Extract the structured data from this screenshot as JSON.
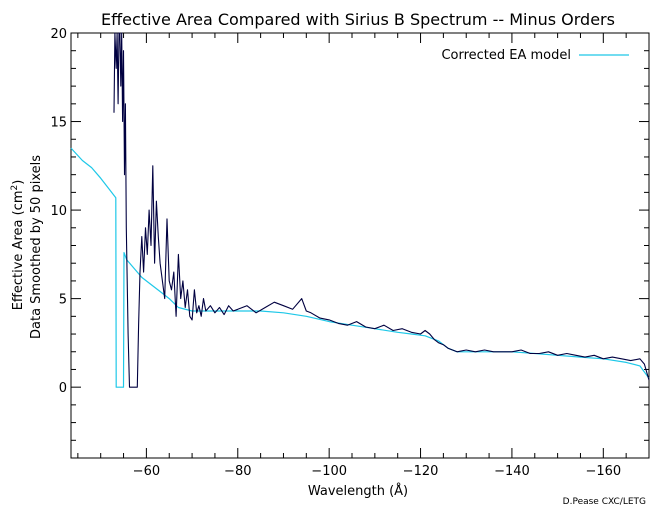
{
  "chart_data": {
    "type": "line",
    "title": "Effective Area Compared with Sirius B Spectrum -- Minus Orders",
    "xlabel": "Wavelength (Å)",
    "ylabel_line1": "Effective Area (cm",
    "ylabel_sup": "2",
    "ylabel_line1_end": ")",
    "ylabel_line2": "Data Smoothed by 50 pixels",
    "credit": "D.Pease CXC/LETG",
    "xlim": [
      -43.5,
      -170
    ],
    "ylim": [
      -4,
      20
    ],
    "x_ticks": [
      -60,
      -80,
      -100,
      -120,
      -140,
      -160
    ],
    "x_tick_labels": [
      "−60",
      "−80",
      "−100",
      "−120",
      "−140",
      "−160"
    ],
    "y_ticks": [
      0,
      5,
      10,
      15,
      20
    ],
    "y_tick_labels": [
      "0",
      "5",
      "10",
      "15",
      "20"
    ],
    "legend": {
      "position": "top-right",
      "label": "Corrected EA model"
    },
    "series": [
      {
        "name": "Corrected EA model",
        "color": "#1ec8e8",
        "x": [
          -43.5,
          -46,
          -48,
          -50,
          -51.5,
          -53.3,
          -53.4,
          -55,
          -55.1,
          -55.7,
          -57,
          -59,
          -61,
          -63,
          -65,
          -67,
          -70,
          -75,
          -80,
          -85,
          -90,
          -95,
          -100,
          -105,
          -110,
          -115,
          -118,
          -121,
          -124,
          -126,
          -128,
          -130,
          -135,
          -140,
          -145,
          -150,
          -155,
          -160,
          -165,
          -168,
          -170
        ],
        "values": [
          13.5,
          12.8,
          12.4,
          11.8,
          11.3,
          10.7,
          0,
          0,
          7.6,
          7.2,
          6.8,
          6.2,
          5.8,
          5.4,
          5.0,
          4.5,
          4.3,
          4.3,
          4.3,
          4.3,
          4.2,
          4.0,
          3.7,
          3.5,
          3.3,
          3.1,
          3.0,
          2.9,
          2.6,
          2.2,
          2.0,
          2.0,
          2.0,
          2.0,
          1.9,
          1.8,
          1.7,
          1.6,
          1.4,
          1.2,
          0.5
        ]
      },
      {
        "name": "",
        "color": "#000040",
        "x": [
          -52.9,
          -53.1,
          -53.4,
          -53.6,
          -53.8,
          -54.0,
          -54.2,
          -54.4,
          -54.6,
          -54.8,
          -55.0,
          -55.2,
          -55.4,
          -55.6,
          -55.8,
          -56.0,
          -56.3,
          -56.6,
          -57.0,
          -57.3,
          -58.0,
          -58.3,
          -58.6,
          -59.0,
          -59.4,
          -59.8,
          -60.2,
          -60.6,
          -61.0,
          -61.4,
          -61.8,
          -62.2,
          -62.6,
          -63.0,
          -63.5,
          -64.0,
          -64.5,
          -65.0,
          -65.5,
          -66.0,
          -66.5,
          -67.0,
          -67.5,
          -68.0,
          -68.5,
          -69.0,
          -69.5,
          -70.0,
          -70.5,
          -71.0,
          -71.5,
          -72.0,
          -72.5,
          -73.0,
          -74.0,
          -75.0,
          -76.0,
          -77.0,
          -78.0,
          -79.0,
          -80.0,
          -82.0,
          -84.0,
          -86.0,
          -88.0,
          -90.0,
          -92.0,
          -94.0,
          -95.0,
          -96.0,
          -98.0,
          -100.0,
          -102.0,
          -104.0,
          -106.0,
          -108.0,
          -110.0,
          -112.0,
          -114.0,
          -116.0,
          -118.0,
          -120.0,
          -121.0,
          -122.0,
          -123.0,
          -124.0,
          -125.0,
          -126.0,
          -127.0,
          -128.0,
          -130.0,
          -132.0,
          -134.0,
          -136.0,
          -138.0,
          -140.0,
          -142.0,
          -144.0,
          -146.0,
          -148.0,
          -150.0,
          -152.0,
          -154.0,
          -156.0,
          -158.0,
          -160.0,
          -162.0,
          -164.0,
          -166.0,
          -168.0,
          -169.0,
          -170.0
        ],
        "values": [
          15.5,
          20.0,
          18.0,
          20.0,
          16.0,
          20.0,
          20.0,
          17.0,
          20.0,
          15.0,
          19.0,
          12.0,
          16.0,
          9.0,
          6.0,
          3.0,
          0.0,
          0.0,
          0.0,
          0.0,
          0.0,
          3.5,
          6.5,
          8.5,
          6.5,
          9.0,
          7.5,
          10.0,
          8.0,
          12.5,
          7.0,
          10.5,
          8.5,
          7.0,
          6.0,
          5.0,
          9.5,
          6.0,
          5.5,
          6.5,
          4.0,
          7.5,
          5.0,
          6.0,
          4.5,
          5.5,
          4.0,
          3.8,
          5.5,
          4.2,
          4.6,
          4.0,
          5.0,
          4.3,
          4.6,
          4.2,
          4.5,
          4.1,
          4.6,
          4.3,
          4.4,
          4.6,
          4.2,
          4.5,
          4.8,
          4.6,
          4.4,
          5.0,
          4.3,
          4.2,
          3.9,
          3.8,
          3.6,
          3.5,
          3.7,
          3.4,
          3.3,
          3.5,
          3.2,
          3.3,
          3.1,
          3.0,
          3.2,
          3.0,
          2.7,
          2.5,
          2.4,
          2.2,
          2.1,
          2.0,
          2.1,
          2.0,
          2.1,
          2.0,
          2.0,
          2.0,
          2.1,
          1.9,
          1.9,
          2.0,
          1.8,
          1.9,
          1.8,
          1.7,
          1.8,
          1.6,
          1.7,
          1.6,
          1.5,
          1.6,
          1.3,
          0.4
        ]
      }
    ]
  }
}
